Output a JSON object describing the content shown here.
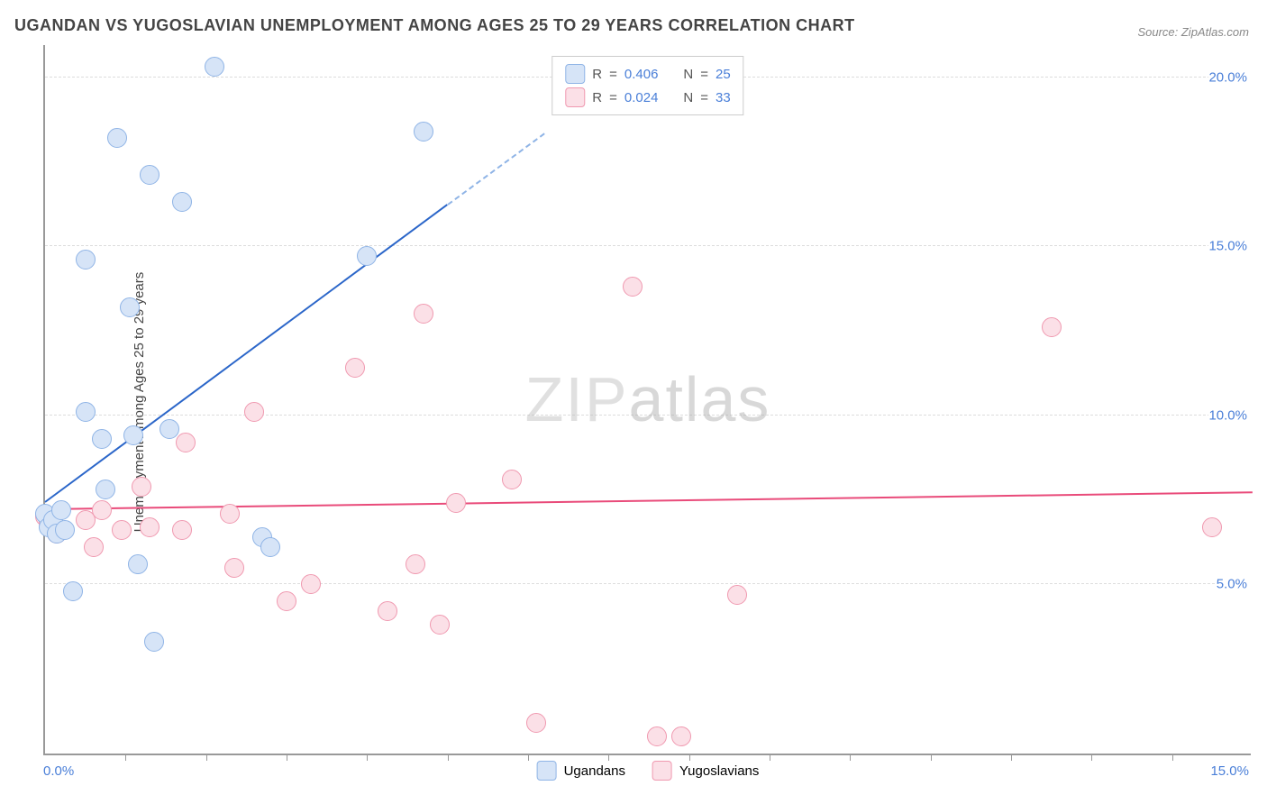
{
  "title": "UGANDAN VS YUGOSLAVIAN UNEMPLOYMENT AMONG AGES 25 TO 29 YEARS CORRELATION CHART",
  "source_label": "Source: ",
  "source_name": "ZipAtlas.com",
  "ylabel": "Unemployment Among Ages 25 to 29 years",
  "watermark_a": "ZIP",
  "watermark_b": "atlas",
  "chart": {
    "type": "scatter",
    "xlim": [
      0,
      15
    ],
    "ylim": [
      0,
      21
    ],
    "xtick_labels": [
      "0.0%",
      "15.0%"
    ],
    "xtick_positions": [
      0,
      15
    ],
    "xtick_minor": [
      1,
      2,
      3,
      4,
      5,
      6,
      7,
      8,
      9,
      10,
      11,
      12,
      13,
      14
    ],
    "ytick_labels": [
      "5.0%",
      "10.0%",
      "15.0%",
      "20.0%"
    ],
    "ytick_positions": [
      5,
      10,
      15,
      20
    ],
    "grid_color": "#dddddd",
    "axis_color": "#999999",
    "background_color": "#ffffff",
    "marker_radius": 11,
    "marker_stroke_width": 1.5,
    "label_color": "#4a7fd8"
  },
  "series": {
    "ugandans": {
      "label": "Ugandans",
      "fill_color": "#d6e4f7",
      "stroke_color": "#8fb4e6",
      "line_color": "#2b66c9",
      "r_label": "R",
      "r_value": "0.406",
      "n_label": "N",
      "n_value": "25",
      "trend": {
        "x1": 0.0,
        "y1": 7.4,
        "x2": 5.0,
        "y2": 16.2,
        "dash_x2": 6.2,
        "dash_y2": 18.3
      },
      "points": [
        {
          "x": 0.0,
          "y": 7.1
        },
        {
          "x": 0.05,
          "y": 6.7
        },
        {
          "x": 0.1,
          "y": 6.9
        },
        {
          "x": 0.2,
          "y": 7.2
        },
        {
          "x": 0.15,
          "y": 6.5
        },
        {
          "x": 0.25,
          "y": 6.6
        },
        {
          "x": 0.35,
          "y": 4.8
        },
        {
          "x": 0.5,
          "y": 14.6
        },
        {
          "x": 0.5,
          "y": 10.1
        },
        {
          "x": 0.7,
          "y": 9.3
        },
        {
          "x": 0.75,
          "y": 7.8
        },
        {
          "x": 0.9,
          "y": 18.2
        },
        {
          "x": 1.05,
          "y": 13.2
        },
        {
          "x": 1.1,
          "y": 9.4
        },
        {
          "x": 1.15,
          "y": 5.6
        },
        {
          "x": 1.3,
          "y": 17.1
        },
        {
          "x": 1.35,
          "y": 3.3
        },
        {
          "x": 1.55,
          "y": 9.6
        },
        {
          "x": 1.7,
          "y": 16.3
        },
        {
          "x": 2.1,
          "y": 20.3
        },
        {
          "x": 2.7,
          "y": 6.4
        },
        {
          "x": 2.8,
          "y": 6.1
        },
        {
          "x": 4.0,
          "y": 14.7
        },
        {
          "x": 4.7,
          "y": 18.4
        }
      ]
    },
    "yugoslavians": {
      "label": "Yugoslavians",
      "fill_color": "#fbe0e7",
      "stroke_color": "#f099b0",
      "line_color": "#e94b7a",
      "r_label": "R",
      "r_value": "0.024",
      "n_label": "N",
      "n_value": "33",
      "trend": {
        "x1": 0.0,
        "y1": 7.2,
        "x2": 15.0,
        "y2": 7.7
      },
      "points": [
        {
          "x": 0.0,
          "y": 7.0
        },
        {
          "x": 0.05,
          "y": 6.8
        },
        {
          "x": 0.1,
          "y": 7.0
        },
        {
          "x": 0.15,
          "y": 6.5
        },
        {
          "x": 0.5,
          "y": 6.9
        },
        {
          "x": 0.6,
          "y": 6.1
        },
        {
          "x": 0.7,
          "y": 7.2
        },
        {
          "x": 0.95,
          "y": 6.6
        },
        {
          "x": 1.2,
          "y": 7.9
        },
        {
          "x": 1.3,
          "y": 6.7
        },
        {
          "x": 1.7,
          "y": 6.6
        },
        {
          "x": 1.75,
          "y": 9.2
        },
        {
          "x": 2.3,
          "y": 7.1
        },
        {
          "x": 2.35,
          "y": 5.5
        },
        {
          "x": 2.6,
          "y": 10.1
        },
        {
          "x": 3.0,
          "y": 4.5
        },
        {
          "x": 3.3,
          "y": 5.0
        },
        {
          "x": 3.85,
          "y": 11.4
        },
        {
          "x": 4.25,
          "y": 4.2
        },
        {
          "x": 4.6,
          "y": 5.6
        },
        {
          "x": 4.7,
          "y": 13.0
        },
        {
          "x": 4.9,
          "y": 3.8
        },
        {
          "x": 5.1,
          "y": 7.4
        },
        {
          "x": 5.8,
          "y": 8.1
        },
        {
          "x": 6.1,
          "y": 0.9
        },
        {
          "x": 7.3,
          "y": 13.8
        },
        {
          "x": 7.6,
          "y": 0.5
        },
        {
          "x": 7.9,
          "y": 0.5
        },
        {
          "x": 8.6,
          "y": 4.7
        },
        {
          "x": 12.5,
          "y": 12.6
        },
        {
          "x": 14.5,
          "y": 6.7
        }
      ]
    }
  },
  "legend_top": {
    "equals": " = "
  }
}
